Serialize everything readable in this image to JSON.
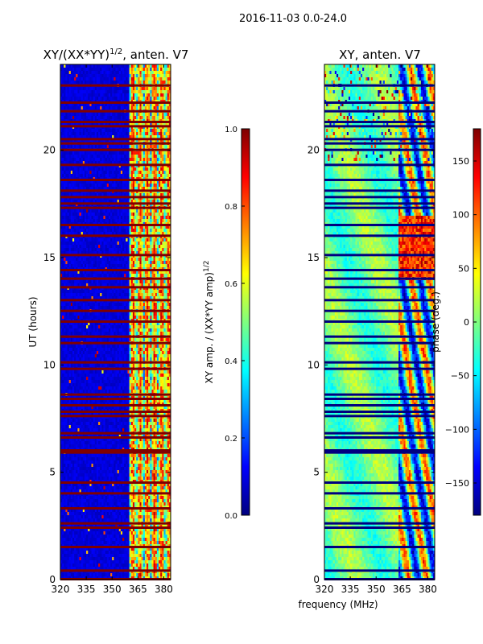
{
  "figure": {
    "suptitle": "2016-11-03 0.0-24.0",
    "common_xlabel": "frequency (MHz)"
  },
  "colors": {
    "jet": [
      "#00007f",
      "#0000ff",
      "#007fff",
      "#00ffff",
      "#7fff7f",
      "#ffff00",
      "#ff7f00",
      "#ff0000",
      "#7f0000"
    ],
    "axis": "#000000",
    "background": "#ffffff"
  },
  "chart_data": [
    {
      "type": "heatmap",
      "name": "normalized-xy-amplitude",
      "title_main": "XY/(XX*YY)",
      "title_sup": "1/2",
      "title_tail": ", anten. V7",
      "xlabel": "",
      "ylabel": "UT (hours)",
      "xlim": [
        320,
        384
      ],
      "ylim": [
        0,
        24
      ],
      "x_ticks": [
        320,
        335,
        350,
        365,
        380
      ],
      "y_ticks": [
        0,
        5,
        10,
        15,
        20
      ],
      "dead_rows_hours": [
        0.0,
        0.4,
        1.5,
        2.4,
        2.6,
        3.3,
        4.0,
        4.5,
        5.9,
        6.0,
        6.6,
        6.8,
        7.6,
        7.8,
        8.1,
        8.4,
        8.6,
        9.8,
        10.1,
        11.0,
        11.3,
        12.0,
        12.5,
        13.0,
        13.6,
        14.0,
        14.4,
        15.1,
        16.0,
        16.5,
        17.3,
        17.5,
        17.8,
        18.1,
        18.6,
        19.3,
        20.0,
        20.3,
        20.5,
        21.1,
        21.3,
        21.8,
        22.2,
        23.0
      ],
      "colorbar": {
        "label_main": "XY amp. / (XX*YY amp)",
        "label_sup": "1/2",
        "range": [
          0.0,
          1.0
        ],
        "ticks": [
          "0.0",
          "0.2",
          "0.4",
          "0.6",
          "0.8",
          "1.0"
        ]
      }
    },
    {
      "type": "heatmap",
      "name": "xy-phase",
      "title": "XY, anten. V7",
      "xlabel": "frequency (MHz)",
      "ylabel": "",
      "xlim": [
        320,
        384
      ],
      "ylim": [
        0,
        24
      ],
      "x_ticks": [
        320,
        335,
        350,
        365,
        380
      ],
      "y_ticks": [
        0,
        5,
        10,
        15,
        20
      ],
      "dead_rows_hours": [
        0.0,
        0.4,
        1.5,
        2.4,
        2.6,
        3.3,
        4.0,
        4.5,
        5.9,
        6.0,
        6.6,
        6.8,
        7.6,
        7.8,
        8.1,
        8.4,
        8.6,
        9.8,
        10.1,
        11.0,
        11.3,
        12.0,
        12.5,
        13.0,
        13.6,
        14.0,
        14.4,
        15.1,
        16.0,
        16.5,
        17.3,
        17.5,
        17.8,
        18.1,
        18.6,
        19.3,
        20.0,
        20.3,
        20.5,
        21.1,
        21.3,
        21.8,
        22.2,
        23.0
      ],
      "colorbar": {
        "label": "phase (deg.)",
        "range": [
          -180,
          180
        ],
        "ticks": [
          "−150",
          "−100",
          "−50",
          "0",
          "50",
          "100",
          "150"
        ]
      }
    }
  ]
}
